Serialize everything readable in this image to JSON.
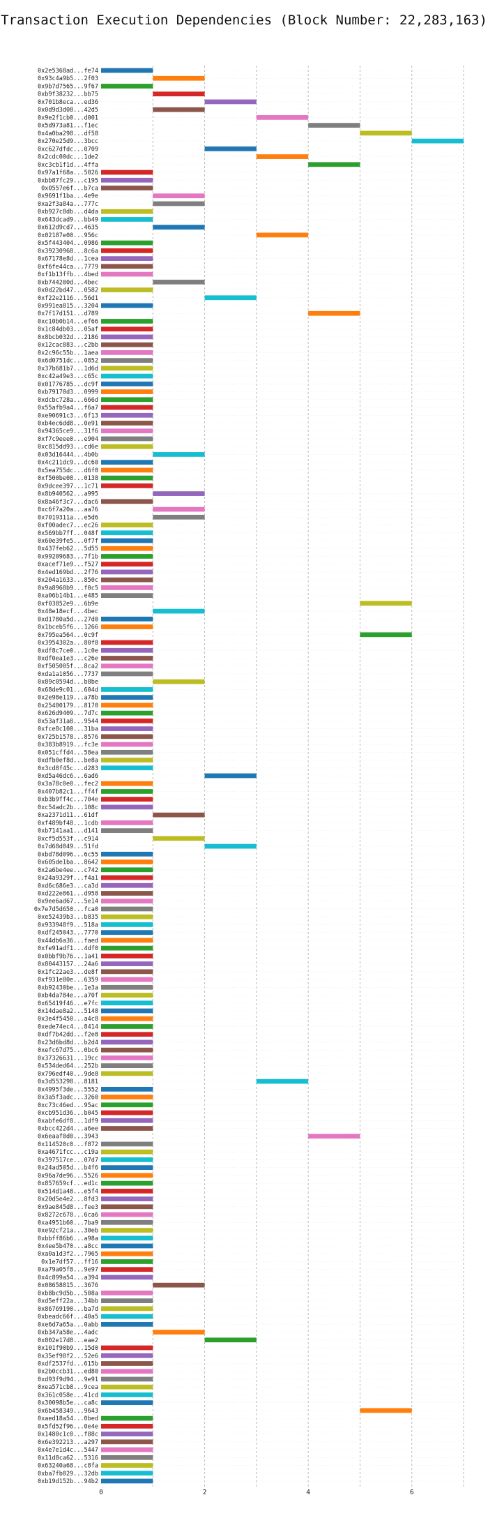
{
  "chart_data": {
    "type": "gantt",
    "title": "Transaction Execution Dependencies (Block Number: 22,283,163)",
    "xlabel": "",
    "ylabel": "",
    "xlim": [
      0,
      7.0
    ],
    "xticks": [
      0,
      2,
      4,
      6
    ],
    "grid": true,
    "colors": [
      "#1f77b4",
      "#ff7f0e",
      "#2ca02c",
      "#d62728",
      "#9467bd",
      "#8c564b",
      "#e377c2",
      "#7f7f7f",
      "#bcbd22",
      "#17becf"
    ],
    "transactions": [
      {
        "label": "0x2e5368ad...fe74",
        "start": 0,
        "end": 1
      },
      {
        "label": "0x93c4a9b5...2f03",
        "start": 1,
        "end": 2
      },
      {
        "label": "0x9b7d7565...9f67",
        "start": 0,
        "end": 1
      },
      {
        "label": "0xb9f38232...bb75",
        "start": 1,
        "end": 2
      },
      {
        "label": "0x701b8eca...ed36",
        "start": 2,
        "end": 3
      },
      {
        "label": "0x0d9d3d08...42d5",
        "start": 1,
        "end": 2
      },
      {
        "label": "0x9e2f1cb0...d001",
        "start": 3,
        "end": 4
      },
      {
        "label": "0x5d973a81...f1ec",
        "start": 4,
        "end": 5
      },
      {
        "label": "0x4a0ba298...df58",
        "start": 5,
        "end": 6
      },
      {
        "label": "0x270e25d9...3bcc",
        "start": 6,
        "end": 7
      },
      {
        "label": "0xc627dfdc...0709",
        "start": 2,
        "end": 3
      },
      {
        "label": "0x2cdc00dc...1de2",
        "start": 3,
        "end": 4
      },
      {
        "label": "0xc3cb1f1d...4ffa",
        "start": 4,
        "end": 5
      },
      {
        "label": "0x97a1f68a...5026",
        "start": 0,
        "end": 1
      },
      {
        "label": "0xbb87fc29...c195",
        "start": 0,
        "end": 1
      },
      {
        "label": "0x0557e6f...b7ca",
        "start": 0,
        "end": 1
      },
      {
        "label": "0x9691f1ba...4e9e",
        "start": 1,
        "end": 2
      },
      {
        "label": "0xa2f3a84a...777c",
        "start": 1,
        "end": 2
      },
      {
        "label": "0xb927c8db...d4da",
        "start": 0,
        "end": 1
      },
      {
        "label": "0x643dcad9...bb49",
        "start": 0,
        "end": 1
      },
      {
        "label": "0x612d9cd7...4635",
        "start": 1,
        "end": 2
      },
      {
        "label": "0x02187e00...956c",
        "start": 3,
        "end": 4
      },
      {
        "label": "0x5f443404...0986",
        "start": 0,
        "end": 1
      },
      {
        "label": "0x39230968...8c6a",
        "start": 0,
        "end": 1
      },
      {
        "label": "0x67178e8d...1cea",
        "start": 0,
        "end": 1
      },
      {
        "label": "0xf6fe44ca...7779",
        "start": 0,
        "end": 1
      },
      {
        "label": "0xf1b13ffb...4bed",
        "start": 0,
        "end": 1
      },
      {
        "label": "0xb744200d...4bec",
        "start": 1,
        "end": 2
      },
      {
        "label": "0x0d22bd47...0582",
        "start": 0,
        "end": 1
      },
      {
        "label": "0xf22e2116...56d1",
        "start": 2,
        "end": 3
      },
      {
        "label": "0x991ea815...3204",
        "start": 0,
        "end": 1
      },
      {
        "label": "0x7f17d151...d789",
        "start": 4,
        "end": 5
      },
      {
        "label": "0xc10b0b14...ef66",
        "start": 0,
        "end": 1
      },
      {
        "label": "0x1c84db03...05af",
        "start": 0,
        "end": 1
      },
      {
        "label": "0x8bcb032d...2186",
        "start": 0,
        "end": 1
      },
      {
        "label": "0x12cac883...c2bb",
        "start": 0,
        "end": 1
      },
      {
        "label": "0x2c96c55b...1aea",
        "start": 0,
        "end": 1
      },
      {
        "label": "0x6d0751dc...0852",
        "start": 0,
        "end": 1
      },
      {
        "label": "0x37b681b7...1d6d",
        "start": 0,
        "end": 1
      },
      {
        "label": "0xc42a49e3...c65c",
        "start": 0,
        "end": 1
      },
      {
        "label": "0x01776785...dc9f",
        "start": 0,
        "end": 1
      },
      {
        "label": "0xb79170d3...0999",
        "start": 0,
        "end": 1
      },
      {
        "label": "0xdcbc728a...666d",
        "start": 0,
        "end": 1
      },
      {
        "label": "0x55afb9a4...f6a7",
        "start": 0,
        "end": 1
      },
      {
        "label": "0xe90691c3...6f13",
        "start": 0,
        "end": 1
      },
      {
        "label": "0xb4ec6dd8...0e91",
        "start": 0,
        "end": 1
      },
      {
        "label": "0x94365ce9...31f6",
        "start": 0,
        "end": 1
      },
      {
        "label": "0xf7c9eee0...e904",
        "start": 0,
        "end": 1
      },
      {
        "label": "0xc815dd93...cd6e",
        "start": 0,
        "end": 1
      },
      {
        "label": "0x03d16444...4b0b",
        "start": 1,
        "end": 2
      },
      {
        "label": "0x4c211dc9...dc60",
        "start": 0,
        "end": 1
      },
      {
        "label": "0x5ea755dc...d6f0",
        "start": 0,
        "end": 1
      },
      {
        "label": "0xf500be08...0138",
        "start": 0,
        "end": 1
      },
      {
        "label": "0x9dcee397...1c71",
        "start": 0,
        "end": 1
      },
      {
        "label": "0x8b940562...a995",
        "start": 1,
        "end": 2
      },
      {
        "label": "0x8a46f3c7...dac6",
        "start": 0,
        "end": 1
      },
      {
        "label": "0xc6f7a20a...aa76",
        "start": 1,
        "end": 2
      },
      {
        "label": "0x7019311a...e5d6",
        "start": 1,
        "end": 2
      },
      {
        "label": "0xf00adec7...ec26",
        "start": 0,
        "end": 1
      },
      {
        "label": "0x569bb7ff...048f",
        "start": 0,
        "end": 1
      },
      {
        "label": "0x60e39fe5...0f7f",
        "start": 0,
        "end": 1
      },
      {
        "label": "0x437feb62...5d55",
        "start": 0,
        "end": 1
      },
      {
        "label": "0x99209683...7f1b",
        "start": 0,
        "end": 1
      },
      {
        "label": "0xacef71e9...f527",
        "start": 0,
        "end": 1
      },
      {
        "label": "0x4ed169bd...2f76",
        "start": 0,
        "end": 1
      },
      {
        "label": "0x204a1633...850c",
        "start": 0,
        "end": 1
      },
      {
        "label": "0x9a8968b9...f0c5",
        "start": 0,
        "end": 1
      },
      {
        "label": "0xa06b14b1...e485",
        "start": 0,
        "end": 1
      },
      {
        "label": "0xf03852e9...6b9e",
        "start": 5,
        "end": 6
      },
      {
        "label": "0x48e18ecf...4bec",
        "start": 1,
        "end": 2
      },
      {
        "label": "0xd1780a5d...27d0",
        "start": 0,
        "end": 1
      },
      {
        "label": "0x1bceb5f6...1266",
        "start": 0,
        "end": 1
      },
      {
        "label": "0x795ea564...0c9f",
        "start": 5,
        "end": 6
      },
      {
        "label": "0x3954302a...80f8",
        "start": 0,
        "end": 1
      },
      {
        "label": "0xdf8c7ce0...1c0e",
        "start": 0,
        "end": 1
      },
      {
        "label": "0xdf0ea1e3...c26e",
        "start": 0,
        "end": 1
      },
      {
        "label": "0xf505005f...8ca2",
        "start": 0,
        "end": 1
      },
      {
        "label": "0xda1a1056...7737",
        "start": 0,
        "end": 1
      },
      {
        "label": "0x89c0594d...b8be",
        "start": 1,
        "end": 2
      },
      {
        "label": "0x68de9c01...604d",
        "start": 0,
        "end": 1
      },
      {
        "label": "0x2e98e119...a78b",
        "start": 0,
        "end": 1
      },
      {
        "label": "0x25400179...8170",
        "start": 0,
        "end": 1
      },
      {
        "label": "0x626d9409...7d7c",
        "start": 0,
        "end": 1
      },
      {
        "label": "0x53af31a8...9544",
        "start": 0,
        "end": 1
      },
      {
        "label": "0xfce8c100...31ba",
        "start": 0,
        "end": 1
      },
      {
        "label": "0x725b1578...8576",
        "start": 0,
        "end": 1
      },
      {
        "label": "0x383b8919...fc3e",
        "start": 0,
        "end": 1
      },
      {
        "label": "0x051cffd4...58ea",
        "start": 0,
        "end": 1
      },
      {
        "label": "0xdfb0ef8d...be8a",
        "start": 0,
        "end": 1
      },
      {
        "label": "0x3cd8f45c...d283",
        "start": 0,
        "end": 1
      },
      {
        "label": "0xd5a46dc6...6ad6",
        "start": 2,
        "end": 3
      },
      {
        "label": "0x3a78c0e0...fec2",
        "start": 0,
        "end": 1
      },
      {
        "label": "0x407b82c1...ff4f",
        "start": 0,
        "end": 1
      },
      {
        "label": "0xb3b9ff4c...704e",
        "start": 0,
        "end": 1
      },
      {
        "label": "0xc54adc2b...108c",
        "start": 0,
        "end": 1
      },
      {
        "label": "0xa2371d11...61df",
        "start": 1,
        "end": 2
      },
      {
        "label": "0xf489bf48...1cdb",
        "start": 0,
        "end": 1
      },
      {
        "label": "0xb7141aa1...d141",
        "start": 0,
        "end": 1
      },
      {
        "label": "0xcf5d553f...c914",
        "start": 1,
        "end": 2
      },
      {
        "label": "0x7d68d049...51fd",
        "start": 2,
        "end": 3
      },
      {
        "label": "0xbd78d096...6c55",
        "start": 0,
        "end": 1
      },
      {
        "label": "0x605de1ba...8642",
        "start": 0,
        "end": 1
      },
      {
        "label": "0x2a6be4ee...c742",
        "start": 0,
        "end": 1
      },
      {
        "label": "0x24a9329f...f4a1",
        "start": 0,
        "end": 1
      },
      {
        "label": "0xd6c686e3...ca3d",
        "start": 0,
        "end": 1
      },
      {
        "label": "0xd222e861...d958",
        "start": 0,
        "end": 1
      },
      {
        "label": "0x9ee6ad67...5e14",
        "start": 0,
        "end": 1
      },
      {
        "label": "0x7e7d5d650...fca0",
        "start": 0,
        "end": 1
      },
      {
        "label": "0xe52439b3...b835",
        "start": 0,
        "end": 1
      },
      {
        "label": "0x933948f9...518a",
        "start": 0,
        "end": 1
      },
      {
        "label": "0xdf245043...7770",
        "start": 0,
        "end": 1
      },
      {
        "label": "0x44db6a36...faed",
        "start": 0,
        "end": 1
      },
      {
        "label": "0xfe91adf1...4df0",
        "start": 0,
        "end": 1
      },
      {
        "label": "0x0bbf9b76...1a41",
        "start": 0,
        "end": 1
      },
      {
        "label": "0x80443157...24a6",
        "start": 0,
        "end": 1
      },
      {
        "label": "0x1fc22ae3...de8f",
        "start": 0,
        "end": 1
      },
      {
        "label": "0xf931e80e...6359",
        "start": 0,
        "end": 1
      },
      {
        "label": "0xb92430be...1e3a",
        "start": 0,
        "end": 1
      },
      {
        "label": "0xb4da784e...a70f",
        "start": 0,
        "end": 1
      },
      {
        "label": "0x65419f46...e7fc",
        "start": 0,
        "end": 1
      },
      {
        "label": "0x14dae8a2...5148",
        "start": 0,
        "end": 1
      },
      {
        "label": "0x3e4f5450...a4c8",
        "start": 0,
        "end": 1
      },
      {
        "label": "0xede74ec4...8414",
        "start": 0,
        "end": 1
      },
      {
        "label": "0xdf7b42dd...f2e8",
        "start": 0,
        "end": 1
      },
      {
        "label": "0x23d6bd8d...b2d4",
        "start": 0,
        "end": 1
      },
      {
        "label": "0xefc67d75...0bc6",
        "start": 0,
        "end": 1
      },
      {
        "label": "0x37326631...19cc",
        "start": 0,
        "end": 1
      },
      {
        "label": "0x534ded64...252b",
        "start": 0,
        "end": 1
      },
      {
        "label": "0x796edf40...9de8",
        "start": 0,
        "end": 1
      },
      {
        "label": "0x3d553298...8181",
        "start": 3,
        "end": 4
      },
      {
        "label": "0x4995f3de...5552",
        "start": 0,
        "end": 1
      },
      {
        "label": "0x3a5f3adc...3260",
        "start": 0,
        "end": 1
      },
      {
        "label": "0xc73c46ed...95ac",
        "start": 0,
        "end": 1
      },
      {
        "label": "0xcb951d36...b045",
        "start": 0,
        "end": 1
      },
      {
        "label": "0xabfe6df8...1df9",
        "start": 0,
        "end": 1
      },
      {
        "label": "0xbcc422d4...a6ee",
        "start": 0,
        "end": 1
      },
      {
        "label": "0x6eaaf0d0...3943",
        "start": 4,
        "end": 5
      },
      {
        "label": "0x114520c0...f872",
        "start": 0,
        "end": 1
      },
      {
        "label": "0xa4671fcc...c19a",
        "start": 0,
        "end": 1
      },
      {
        "label": "0x397517ce...07d7",
        "start": 0,
        "end": 1
      },
      {
        "label": "0x24ad505d...b4f6",
        "start": 0,
        "end": 1
      },
      {
        "label": "0x96a7de96...5526",
        "start": 0,
        "end": 1
      },
      {
        "label": "0x857659cf...ed1c",
        "start": 0,
        "end": 1
      },
      {
        "label": "0x514d1a48...e5f4",
        "start": 0,
        "end": 1
      },
      {
        "label": "0x20d5e4e2...8fd3",
        "start": 0,
        "end": 1
      },
      {
        "label": "0x9ae845d8...fee3",
        "start": 0,
        "end": 1
      },
      {
        "label": "0x8272c678...6ca6",
        "start": 0,
        "end": 1
      },
      {
        "label": "0xa4951b60...7ba9",
        "start": 0,
        "end": 1
      },
      {
        "label": "0xe92cf21a...30eb",
        "start": 0,
        "end": 1
      },
      {
        "label": "0xbbff86b6...a98a",
        "start": 0,
        "end": 1
      },
      {
        "label": "0x4ee5b470...a8cc",
        "start": 0,
        "end": 1
      },
      {
        "label": "0xa0a1d3f2...7965",
        "start": 0,
        "end": 1
      },
      {
        "label": "0x1e7df57...ff16",
        "start": 0,
        "end": 1
      },
      {
        "label": "0xa79a05f8...9e97",
        "start": 0,
        "end": 1
      },
      {
        "label": "0x4c899a54...a394",
        "start": 0,
        "end": 1
      },
      {
        "label": "0x08658815...3676",
        "start": 1,
        "end": 2
      },
      {
        "label": "0xb8bc9d5b...508a",
        "start": 0,
        "end": 1
      },
      {
        "label": "0xd5eff22a...34bb",
        "start": 0,
        "end": 1
      },
      {
        "label": "0x86769190...ba7d",
        "start": 0,
        "end": 1
      },
      {
        "label": "0xbeadc66f...40a5",
        "start": 0,
        "end": 1
      },
      {
        "label": "0xe6d7a65a...0abb",
        "start": 0,
        "end": 1
      },
      {
        "label": "0xb347a58e...4adc",
        "start": 1,
        "end": 2
      },
      {
        "label": "0x802e17d8...eae2",
        "start": 2,
        "end": 3
      },
      {
        "label": "0x101f90b9...15d0",
        "start": 0,
        "end": 1
      },
      {
        "label": "0x35ef98f2...52e6",
        "start": 0,
        "end": 1
      },
      {
        "label": "0xdf2537fd...615b",
        "start": 0,
        "end": 1
      },
      {
        "label": "0x2b0ccb31...ed80",
        "start": 0,
        "end": 1
      },
      {
        "label": "0xd93f9d94...9e91",
        "start": 0,
        "end": 1
      },
      {
        "label": "0xea571cb8...9cea",
        "start": 0,
        "end": 1
      },
      {
        "label": "0x361c058e...41cd",
        "start": 0,
        "end": 1
      },
      {
        "label": "0x30098b5e...ca8c",
        "start": 0,
        "end": 1
      },
      {
        "label": "0x6b458349...9643",
        "start": 5,
        "end": 6
      },
      {
        "label": "0xaed18a54...0bed",
        "start": 0,
        "end": 1
      },
      {
        "label": "0x5fd52f96...0e4e",
        "start": 0,
        "end": 1
      },
      {
        "label": "0x1480c1c0...f88c",
        "start": 0,
        "end": 1
      },
      {
        "label": "0x6e392213...a297",
        "start": 0,
        "end": 1
      },
      {
        "label": "0x4e7e1d4c...5447",
        "start": 0,
        "end": 1
      },
      {
        "label": "0x11d8ca62...5316",
        "start": 0,
        "end": 1
      },
      {
        "label": "0x63240a68...c8fa",
        "start": 0,
        "end": 1
      },
      {
        "label": "0xba7fb029...32db",
        "start": 0,
        "end": 1
      },
      {
        "label": "0xb19d152b...94b2",
        "start": 0,
        "end": 1
      }
    ]
  }
}
